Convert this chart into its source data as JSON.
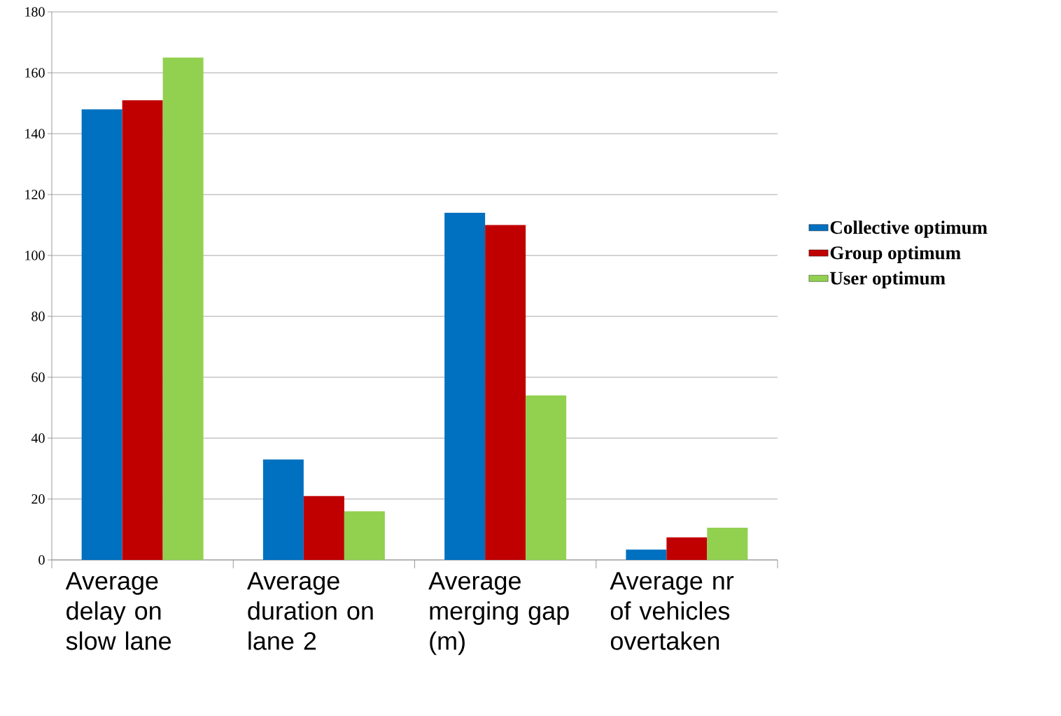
{
  "chart_data": {
    "type": "bar",
    "categories": [
      "Average delay on slow lane",
      "Average duration on lane 2",
      "Average merging gap (m)",
      "Average nr of vehicles overtaken"
    ],
    "series": [
      {
        "name": "Collective optimum",
        "color": "#0070c0",
        "values": [
          148,
          33,
          114,
          3.4
        ]
      },
      {
        "name": "Group optimum",
        "color": "#c00000",
        "values": [
          151,
          21,
          110,
          7.4
        ]
      },
      {
        "name": "User optimum",
        "color": "#92d050",
        "values": [
          165,
          16,
          54,
          10.6
        ]
      }
    ],
    "ylim": [
      0,
      180
    ],
    "yticks": [
      0,
      20,
      40,
      60,
      80,
      100,
      120,
      140,
      160,
      180
    ],
    "grid": "y",
    "legend": "right"
  }
}
